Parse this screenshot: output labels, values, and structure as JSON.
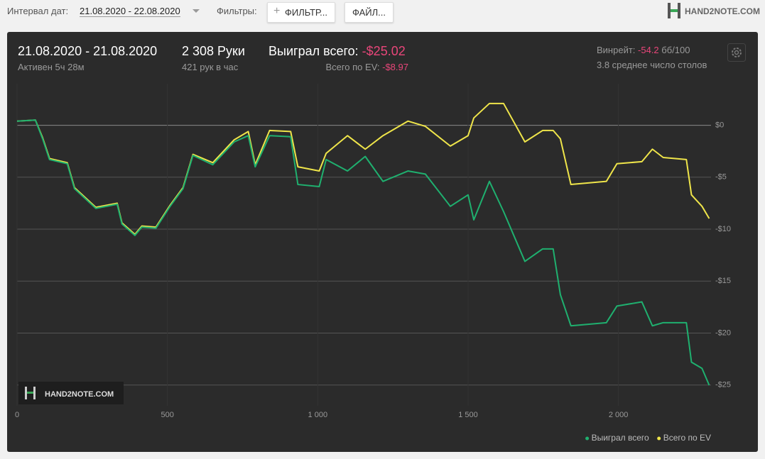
{
  "toolbar": {
    "date_label": "Интервал дат:",
    "date_range": "21.08.2020 - 22.08.2020",
    "filters_label": "Фильтры:",
    "filter_button": "ФИЛЬТР...",
    "file_button": "ФАЙЛ...",
    "logo": "HAND2NOTE.COM"
  },
  "summary": {
    "date": "21.08.2020 - 21.08.2020",
    "active": "Активен 5ч 28м",
    "hands": "2 308 Руки",
    "hands_per_hour": "421 рук в час",
    "won_label": "Выиграл всего:",
    "won_value": "-$25.02",
    "ev_label": "Всего по EV:",
    "ev_value": "-$8.97",
    "winrate_label": "Винрейт:",
    "winrate_value": "-54.2",
    "winrate_unit": "бб/100",
    "tables": "3.8 среднее число столов"
  },
  "chart_data": {
    "type": "line",
    "x": [
      0,
      61,
      85,
      108,
      167,
      191,
      262,
      333,
      349,
      392,
      415,
      462,
      509,
      552,
      585,
      651,
      722,
      769,
      792,
      840,
      910,
      934,
      1005,
      1028,
      1099,
      1158,
      1217,
      1300,
      1358,
      1441,
      1500,
      1519,
      1571,
      1618,
      1689,
      1748,
      1783,
      1807,
      1842,
      1960,
      1995,
      2078,
      2113,
      2149,
      2226,
      2243,
      2278,
      2302
    ],
    "series": [
      {
        "name": "Выиграл всего",
        "color": "#1fb06f",
        "values": [
          0.4,
          0.5,
          -1.3,
          -3.3,
          -3.7,
          -6.1,
          -8.0,
          -7.6,
          -9.5,
          -10.6,
          -9.8,
          -9.9,
          -7.8,
          -6.1,
          -2.9,
          -3.8,
          -1.6,
          -1.0,
          -4.0,
          -1.0,
          -1.1,
          -5.7,
          -5.9,
          -3.3,
          -4.4,
          -3.0,
          -5.4,
          -4.4,
          -4.7,
          -7.8,
          -6.7,
          -9.1,
          -5.4,
          -8.3,
          -13.1,
          -11.9,
          -11.9,
          -16.3,
          -19.3,
          -19.0,
          -17.4,
          -17.0,
          -19.3,
          -19.0,
          -19.0,
          -22.8,
          -23.4,
          -25.02
        ]
      },
      {
        "name": "Всего по EV",
        "color": "#efe54a",
        "values": [
          0.4,
          0.5,
          -1.2,
          -3.2,
          -3.6,
          -6.0,
          -7.9,
          -7.5,
          -9.4,
          -10.5,
          -9.7,
          -9.8,
          -7.7,
          -6.0,
          -2.8,
          -3.6,
          -1.4,
          -0.6,
          -3.8,
          -0.5,
          -0.6,
          -4.0,
          -4.4,
          -2.7,
          -1.0,
          -2.3,
          -1.0,
          0.4,
          -0.1,
          -2.0,
          -1.0,
          0.7,
          2.1,
          2.1,
          -1.6,
          -0.5,
          -0.5,
          -1.3,
          -5.7,
          -5.4,
          -3.7,
          -3.5,
          -2.3,
          -3.1,
          -3.3,
          -6.7,
          -7.8,
          -8.97
        ]
      }
    ],
    "xlim": [
      0,
      2308
    ],
    "xticks": [
      0,
      500,
      {
        "value": 1000,
        "label": "1 000"
      },
      {
        "value": 1500,
        "label": "1 500"
      },
      {
        "value": 2000,
        "label": "2 000"
      }
    ],
    "ylim": [
      -27,
      4
    ],
    "yticks": [
      {
        "value": 0,
        "label": "$0"
      },
      {
        "value": -5,
        "label": "-$5"
      },
      {
        "value": -10,
        "label": "-$10"
      },
      {
        "value": -15,
        "label": "-$15"
      },
      {
        "value": -20,
        "label": "-$20"
      },
      {
        "value": -25,
        "label": "-$25"
      }
    ],
    "grid": true,
    "legend": "bottom-right"
  }
}
